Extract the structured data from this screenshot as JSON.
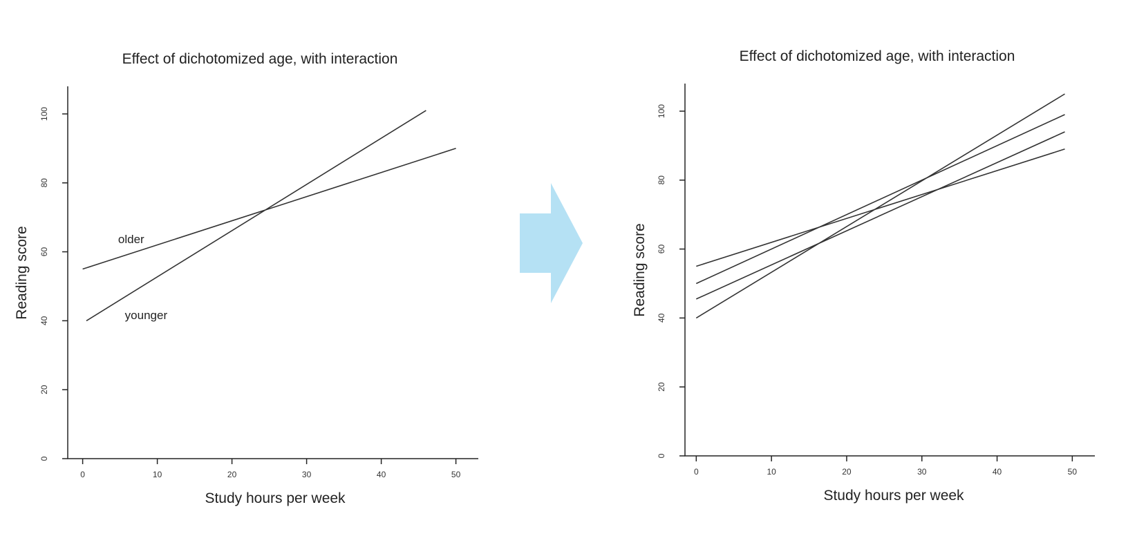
{
  "chart_data": [
    {
      "type": "line",
      "title": "Effect of dichotomized age, with interaction",
      "xlabel": "Study hours per week",
      "ylabel": "Reading score",
      "xlim": [
        -2,
        53
      ],
      "ylim": [
        0,
        108
      ],
      "xticks": [
        0,
        10,
        20,
        30,
        40,
        50
      ],
      "yticks": [
        0,
        20,
        40,
        60,
        80,
        100
      ],
      "grid": false,
      "series": [
        {
          "name": "older",
          "x": [
            0,
            50
          ],
          "y": [
            55,
            90
          ]
        },
        {
          "name": "younger",
          "x": [
            0.5,
            46
          ],
          "y": [
            40,
            101
          ]
        }
      ],
      "annotations": [
        {
          "text": "older",
          "x": 6.5,
          "y": 62.5
        },
        {
          "text": "younger",
          "x": 8.5,
          "y": 40.5
        }
      ]
    },
    {
      "type": "line",
      "title": "Effect of dichotomized age, with interaction",
      "xlabel": "Study hours per week",
      "ylabel": "Reading score",
      "xlim": [
        -1.5,
        53
      ],
      "ylim": [
        0,
        108
      ],
      "xticks": [
        0,
        10,
        20,
        30,
        40,
        50
      ],
      "yticks": [
        0,
        20,
        40,
        60,
        80,
        100
      ],
      "grid": false,
      "series": [
        {
          "x": [
            0,
            49
          ],
          "y": [
            55,
            89
          ]
        },
        {
          "x": [
            0,
            49
          ],
          "y": [
            50,
            99
          ]
        },
        {
          "x": [
            0,
            49
          ],
          "y": [
            45.5,
            94
          ]
        },
        {
          "x": [
            0,
            49
          ],
          "y": [
            40,
            105
          ]
        }
      ]
    }
  ],
  "arrow": {
    "color": "#b5e1f4",
    "icon": "right-arrow-icon"
  }
}
